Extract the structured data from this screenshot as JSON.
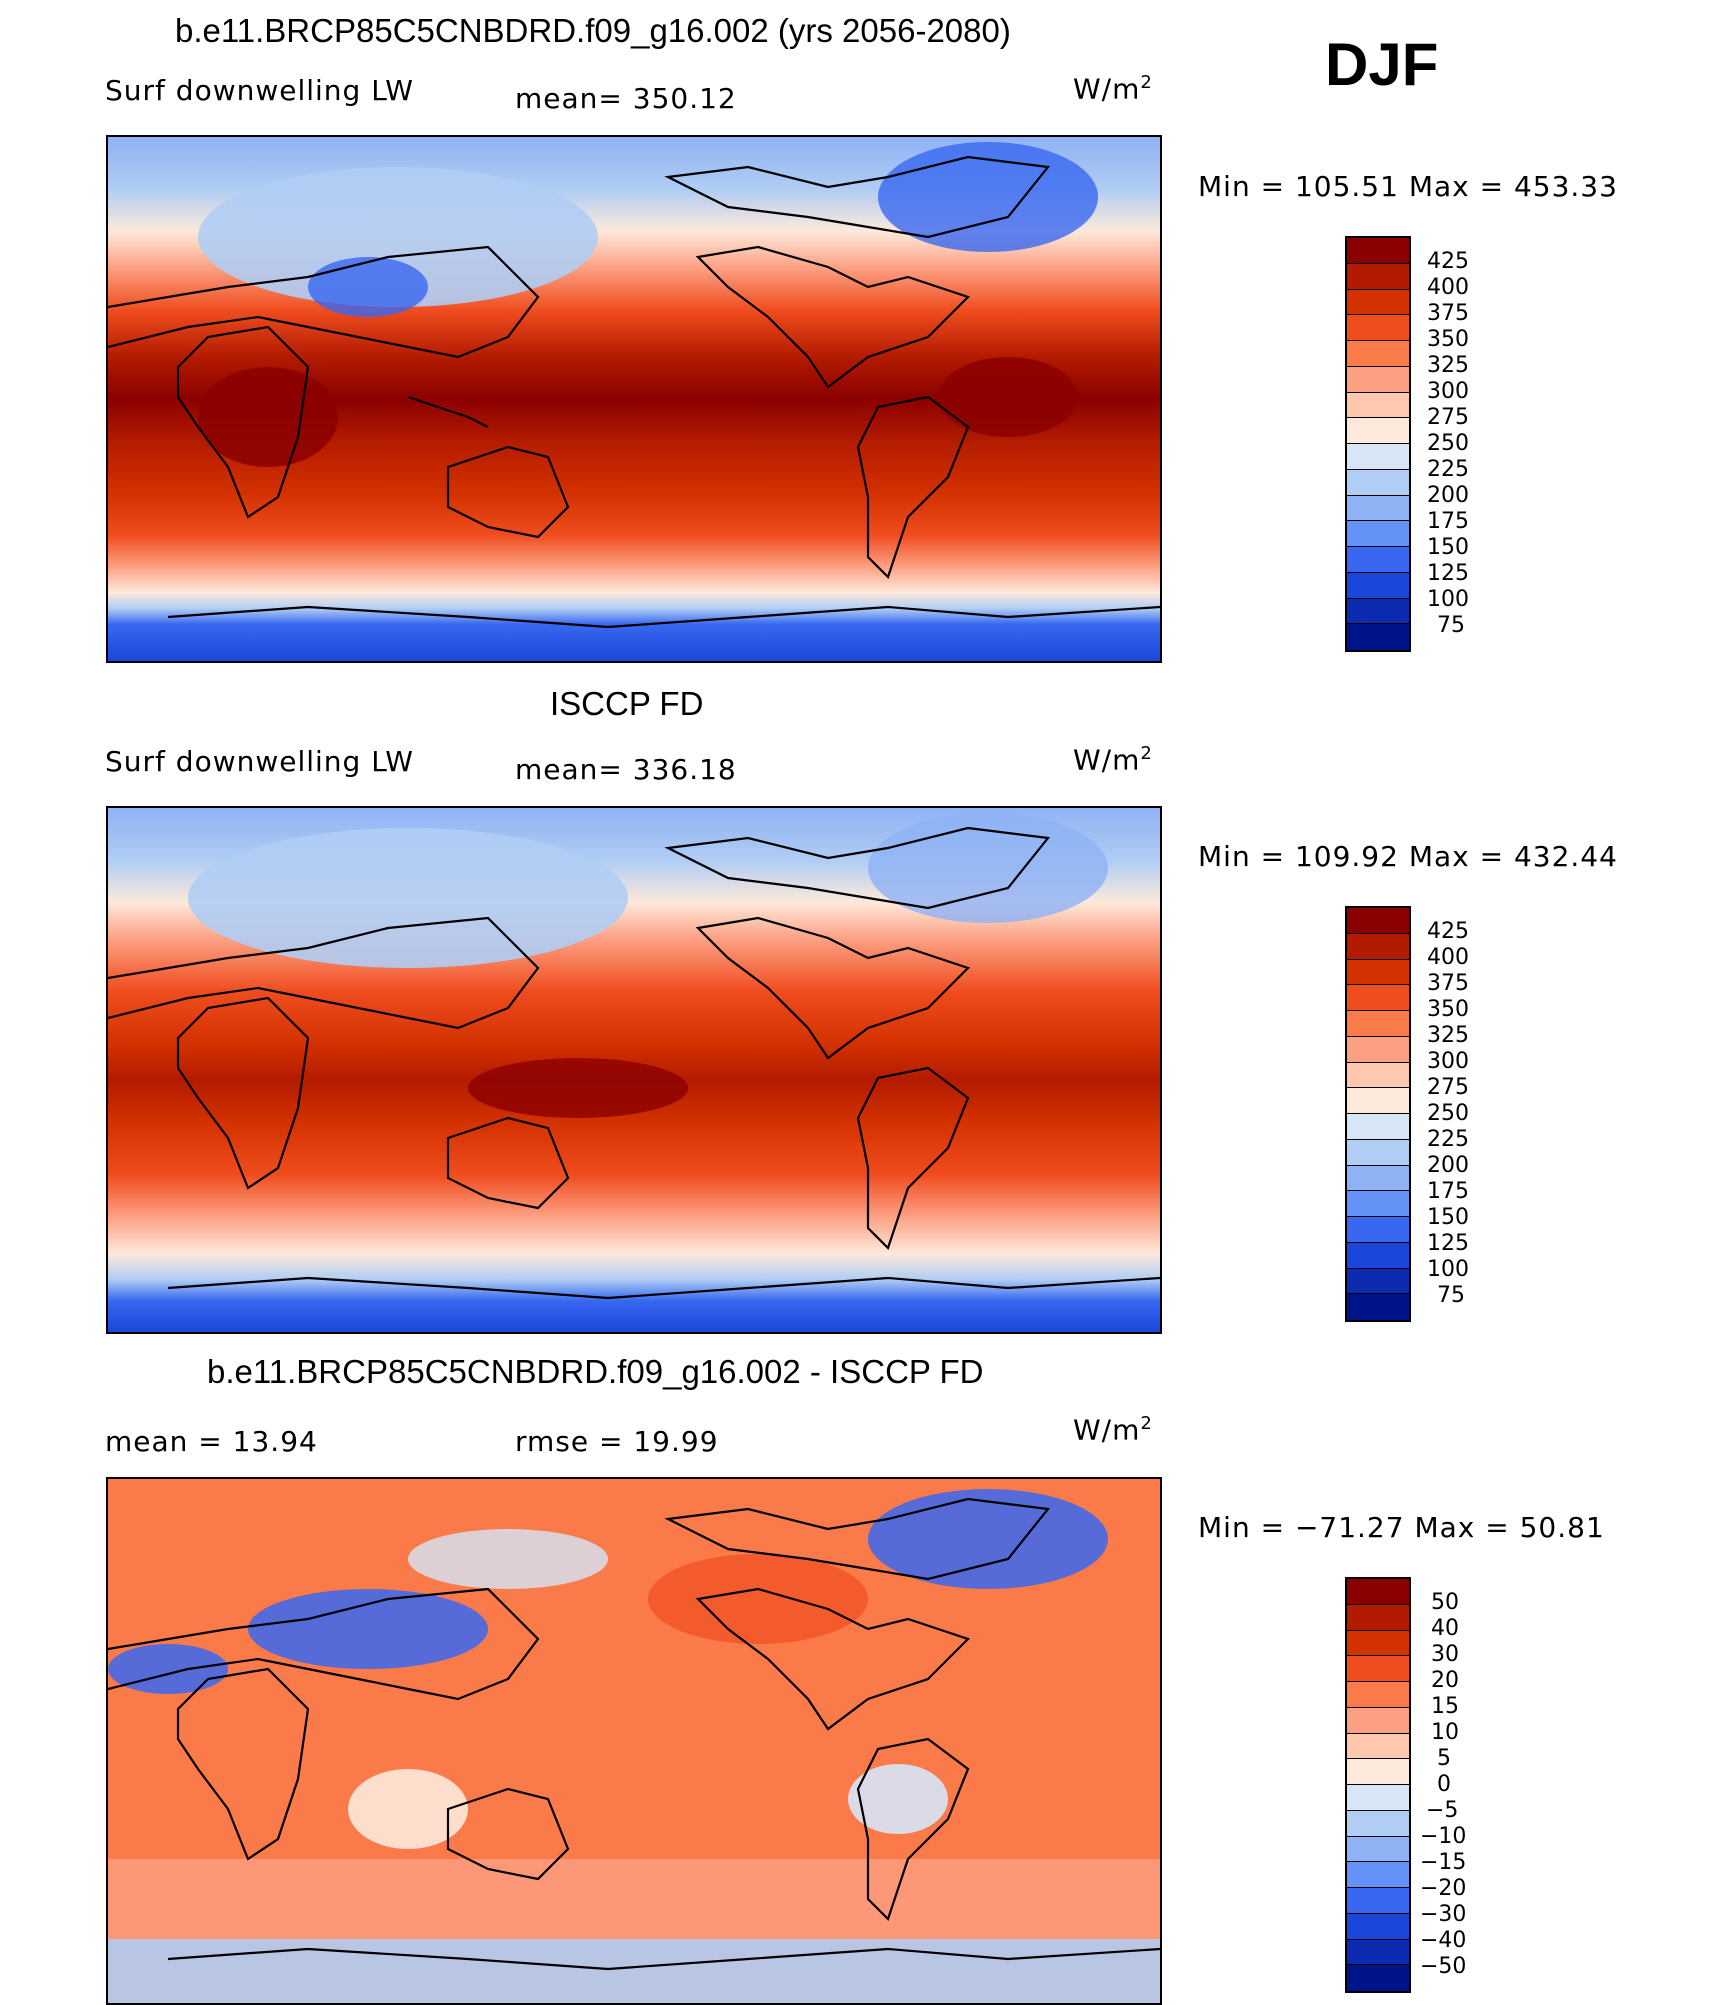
{
  "season": "DJF",
  "panels": [
    {
      "id": "model",
      "title": "b.e11.BRCP85C5CNBDRD.f09_g16.002 (yrs 2056-2080)",
      "left_label": "Surf downwelling LW",
      "center_label": "mean=  350.12",
      "units_base": "W/m",
      "units_sup": "2",
      "minmax": "Min  =  105.51  Max  =  453.33",
      "colorbar_labels": [
        "425",
        "400",
        "375",
        "350",
        "325",
        "300",
        "275",
        "250",
        "225",
        "200",
        "175",
        "150",
        "125",
        "100",
        "75"
      ]
    },
    {
      "id": "obs",
      "title": "ISCCP FD",
      "left_label": "Surf downwelling LW",
      "center_label": "mean=  336.18",
      "units_base": "W/m",
      "units_sup": "2",
      "minmax": "Min  =  109.92  Max  =  432.44",
      "colorbar_labels": [
        "425",
        "400",
        "375",
        "350",
        "325",
        "300",
        "275",
        "250",
        "225",
        "200",
        "175",
        "150",
        "125",
        "100",
        "75"
      ]
    },
    {
      "id": "diff",
      "title": "b.e11.BRCP85C5CNBDRD.f09_g16.002 - ISCCP FD",
      "left_label": "mean =    13.94",
      "center_label": "rmse =    19.99",
      "units_base": "W/m",
      "units_sup": "2",
      "minmax": "Min  =  −71.27  Max  =    50.81",
      "colorbar_labels": [
        "50",
        "40",
        "30",
        "20",
        "15",
        "10",
        "5",
        "0",
        "−5",
        "−10",
        "−15",
        "−20",
        "−30",
        "−40",
        "−50"
      ]
    }
  ],
  "colorbar_colors": [
    "#8b0000",
    "#b31b00",
    "#d33100",
    "#f04d1f",
    "#fb7a4a",
    "#fca083",
    "#fdc8ad",
    "#fde9db",
    "#d6e6f7",
    "#b0cdf4",
    "#8fb2f5",
    "#6492f7",
    "#3868f0",
    "#1c46d9",
    "#0d2bb0",
    "#001489"
  ]
}
